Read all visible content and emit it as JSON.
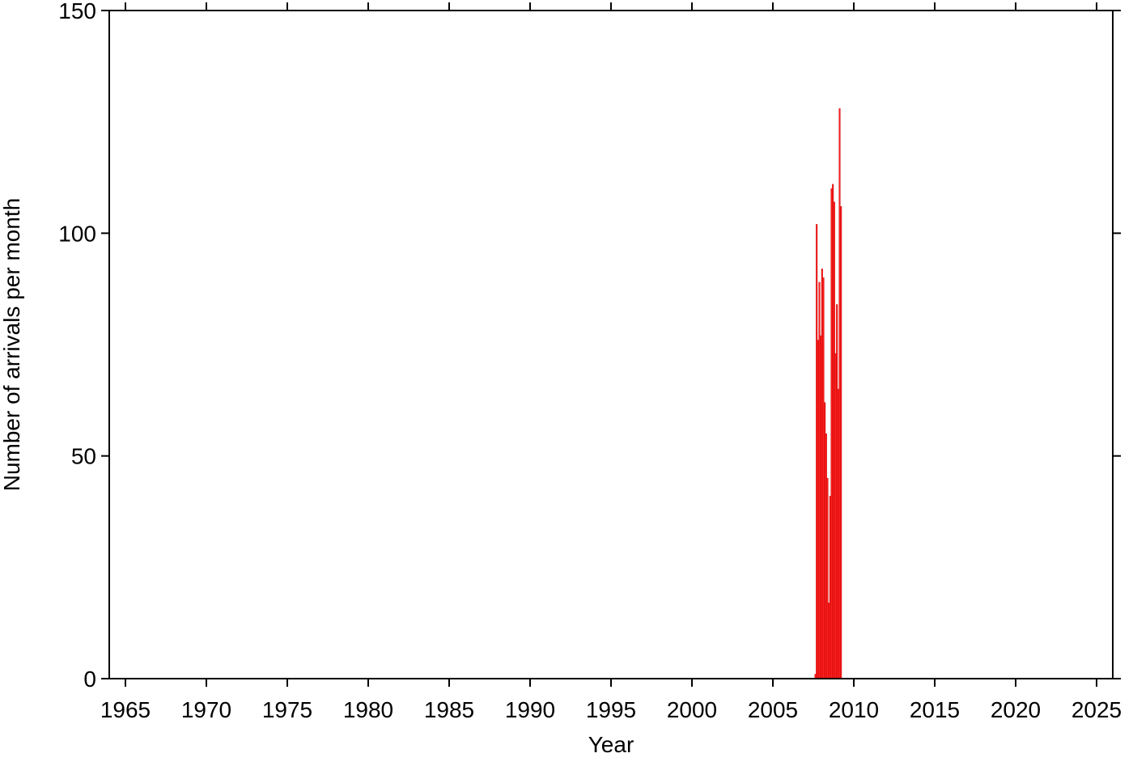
{
  "chart_data": {
    "type": "histogram",
    "x_label": "Year",
    "y_label": "Number of arrivals per month",
    "bins": [
      2007.583,
      2007.667,
      2007.75,
      2007.833,
      2007.917,
      2008,
      2008.083,
      2008.167,
      2008.25,
      2008.333,
      2008.417,
      2008.5,
      2008.583,
      2008.667,
      2008.75,
      2008.833,
      2008.917,
      2009,
      2009.083,
      2009.167,
      2009.25
    ],
    "values": [
      1,
      102,
      76,
      89,
      77,
      92,
      90,
      62,
      55,
      45,
      17,
      41,
      110,
      111,
      107,
      73,
      84,
      65,
      128,
      106
    ],
    "color": "#ff2020",
    "xlim": [
      1964,
      2026
    ],
    "xticks": [
      1965,
      1970,
      1975,
      1980,
      1985,
      1990,
      1995,
      2000,
      2005,
      2010,
      2015,
      2020,
      2025
    ],
    "ylim": [
      0,
      150
    ],
    "yticks": [
      0,
      50,
      100,
      150
    ]
  }
}
